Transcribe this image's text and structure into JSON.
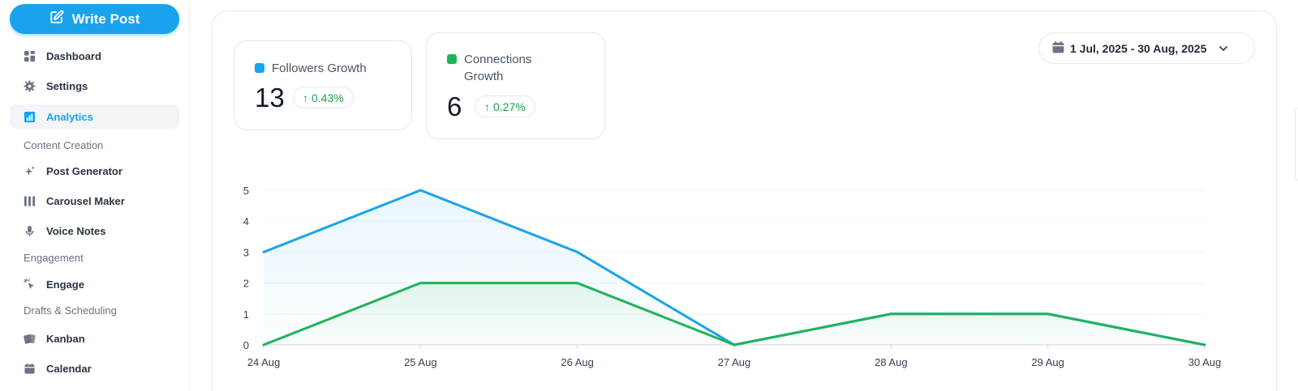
{
  "sidebar": {
    "write_post_label": "Write Post",
    "items": [
      {
        "label": "Dashboard",
        "icon": "dashboard-icon"
      },
      {
        "label": "Settings",
        "icon": "gear-icon"
      },
      {
        "label": "Analytics",
        "icon": "bar-chart-icon",
        "active": true
      },
      {
        "label": "Post Generator",
        "icon": "sparkles-icon"
      },
      {
        "label": "Carousel Maker",
        "icon": "columns-icon"
      },
      {
        "label": "Voice Notes",
        "icon": "microphone-icon"
      },
      {
        "label": "Engage",
        "icon": "cursor-click-icon"
      },
      {
        "label": "Kanban",
        "icon": "cards-icon"
      },
      {
        "label": "Calendar",
        "icon": "calendar-icon"
      }
    ],
    "sections": [
      "Content Creation",
      "Engagement",
      "Drafts & Scheduling"
    ]
  },
  "stats": [
    {
      "label": "Followers Growth",
      "value": "13",
      "delta": "0.43%",
      "color": "#1aa3ec"
    },
    {
      "label_line1": "Connections",
      "label_line2": "Growth",
      "value": "6",
      "delta": "0.27%",
      "color": "#1fb25a"
    }
  ],
  "date_range": {
    "label": "1 Jul, 2025 - 30 Aug, 2025"
  },
  "colors": {
    "accent": "#1aa3ec",
    "followers": "#1aa3ec",
    "connections": "#1fb25a",
    "positive": "#16a34a"
  },
  "chart_data": {
    "type": "area",
    "categories": [
      "24 Aug",
      "25 Aug",
      "26 Aug",
      "27 Aug",
      "28 Aug",
      "29 Aug",
      "30 Aug"
    ],
    "series": [
      {
        "name": "Followers Growth",
        "values": [
          3,
          5,
          3,
          0,
          1,
          1,
          0
        ]
      },
      {
        "name": "Connections Growth",
        "values": [
          0,
          2,
          2,
          0,
          1,
          1,
          0
        ]
      }
    ],
    "ylim": [
      0,
      5
    ],
    "yticks": [
      0,
      1,
      2,
      3,
      4,
      5
    ],
    "grid": true
  }
}
